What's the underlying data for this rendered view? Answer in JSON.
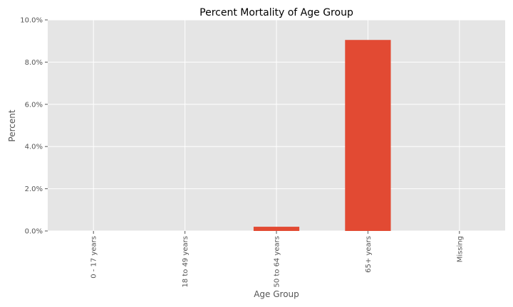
{
  "chart_data": {
    "type": "bar",
    "title": "Percent Mortality of Age Group",
    "xlabel": "Age Group",
    "ylabel": "Percent",
    "categories": [
      "0 - 17 years",
      "18 to 49 years",
      "50 to 64 years",
      "65+ years",
      "Missing"
    ],
    "values": [
      0.0,
      0.0,
      0.2,
      9.05,
      0.0
    ],
    "ylim": [
      0,
      10
    ],
    "yticks": [
      0,
      2,
      4,
      6,
      8,
      10
    ],
    "ytick_labels": [
      "0.0%",
      "2.0%",
      "4.0%",
      "6.0%",
      "8.0%",
      "10.0%"
    ],
    "grid": true,
    "colors": {
      "bar": "#E24A33",
      "plot_background": "#E5E5E5",
      "grid": "#FFFFFF",
      "text": "#555555"
    }
  }
}
